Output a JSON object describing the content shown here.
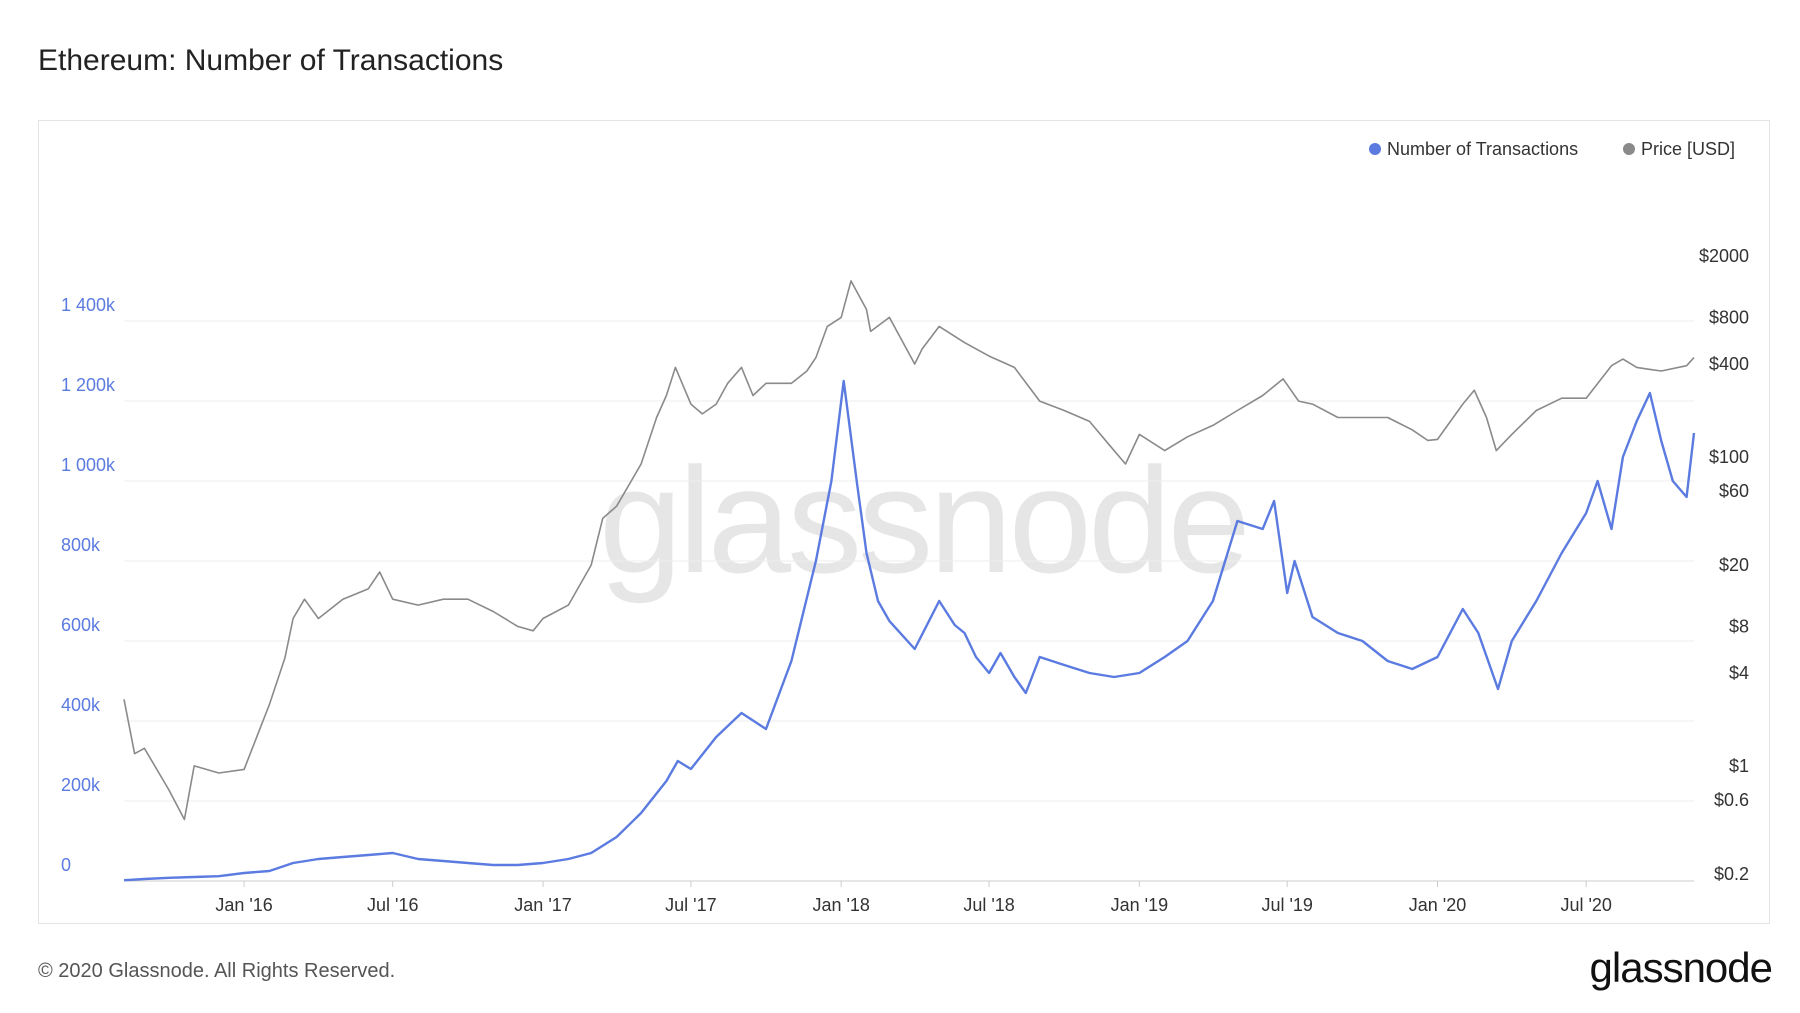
{
  "header": {
    "title": "Ethereum: Number of Transactions"
  },
  "footer": {
    "copyright": "© 2020 Glassnode. All Rights Reserved.",
    "logo": "glassnode"
  },
  "watermark": "glassnode",
  "colors": {
    "transactions": "#5b7be0",
    "price": "#8a8a8a",
    "grid": "#eeeeee"
  },
  "chart_data": {
    "type": "line",
    "title": "Ethereum: Number of Transactions",
    "legend": {
      "placement": "top-right",
      "items": [
        "Number of Transactions",
        "Price [USD]"
      ]
    },
    "grid": true,
    "x_ticks": [
      "Jan '16",
      "Jul '16",
      "Jan '17",
      "Jul '17",
      "Jan '18",
      "Jul '18",
      "Jan '19",
      "Jul '19",
      "Jan '20",
      "Jul '20"
    ],
    "x_range": [
      "2015-08-07",
      "2020-11-10"
    ],
    "y_left": {
      "range": [
        0,
        1600000
      ],
      "ticks": [
        0,
        200000,
        400000,
        600000,
        800000,
        1000000,
        1200000,
        1400000
      ],
      "tick_labels": [
        "0",
        "200k",
        "400k",
        "600k",
        "800k",
        "1 000k",
        "1 200k",
        "1 400k"
      ]
    },
    "y_right": {
      "scale": "log",
      "range": [
        0.18,
        2500
      ],
      "ticks": [
        0.2,
        0.6,
        1,
        4,
        8,
        20,
        60,
        100,
        400,
        800,
        2000
      ],
      "tick_labels": [
        "$0.2",
        "$0.6",
        "$1",
        "$4",
        "$8",
        "$20",
        "$60",
        "$100",
        "$400",
        "$800",
        "$2000"
      ]
    },
    "series": [
      {
        "name": "Number of Transactions",
        "axis": "left",
        "x": [
          "2015-08-07",
          "2015-09-01",
          "2015-10-01",
          "2015-11-01",
          "2015-12-01",
          "2016-01-01",
          "2016-02-01",
          "2016-03-01",
          "2016-04-01",
          "2016-05-01",
          "2016-06-01",
          "2016-07-01",
          "2016-08-01",
          "2016-09-01",
          "2016-10-01",
          "2016-11-01",
          "2016-12-01",
          "2017-01-01",
          "2017-02-01",
          "2017-03-01",
          "2017-04-01",
          "2017-05-01",
          "2017-06-01",
          "2017-06-15",
          "2017-07-01",
          "2017-08-01",
          "2017-09-01",
          "2017-10-01",
          "2017-11-01",
          "2017-12-01",
          "2017-12-20",
          "2018-01-04",
          "2018-01-20",
          "2018-02-01",
          "2018-02-15",
          "2018-03-01",
          "2018-04-01",
          "2018-05-01",
          "2018-05-20",
          "2018-06-01",
          "2018-06-15",
          "2018-07-01",
          "2018-07-15",
          "2018-08-01",
          "2018-08-15",
          "2018-09-01",
          "2018-10-01",
          "2018-11-01",
          "2018-12-01",
          "2019-01-01",
          "2019-02-01",
          "2019-03-01",
          "2019-04-01",
          "2019-05-01",
          "2019-06-01",
          "2019-06-15",
          "2019-07-01",
          "2019-07-10",
          "2019-08-01",
          "2019-09-01",
          "2019-10-01",
          "2019-11-01",
          "2019-12-01",
          "2020-01-01",
          "2020-02-01",
          "2020-02-20",
          "2020-03-15",
          "2020-04-01",
          "2020-05-01",
          "2020-06-01",
          "2020-07-01",
          "2020-07-15",
          "2020-08-01",
          "2020-08-15",
          "2020-09-01",
          "2020-09-17",
          "2020-10-01",
          "2020-10-15",
          "2020-11-01",
          "2020-11-10"
        ],
        "values": [
          2000,
          5000,
          8000,
          10000,
          12000,
          20000,
          25000,
          45000,
          55000,
          60000,
          65000,
          70000,
          55000,
          50000,
          45000,
          40000,
          40000,
          45000,
          55000,
          70000,
          110000,
          170000,
          250000,
          300000,
          280000,
          360000,
          420000,
          380000,
          550000,
          800000,
          1000000,
          1250000,
          1000000,
          820000,
          700000,
          650000,
          580000,
          700000,
          640000,
          620000,
          560000,
          520000,
          570000,
          510000,
          470000,
          560000,
          540000,
          520000,
          510000,
          520000,
          560000,
          600000,
          700000,
          900000,
          880000,
          950000,
          720000,
          800000,
          660000,
          620000,
          600000,
          550000,
          530000,
          560000,
          680000,
          620000,
          480000,
          600000,
          700000,
          820000,
          920000,
          1000000,
          880000,
          1060000,
          1150000,
          1220000,
          1100000,
          1000000,
          960000,
          1120000
        ]
      },
      {
        "name": "Price [USD]",
        "axis": "right",
        "x": [
          "2015-08-07",
          "2015-08-20",
          "2015-09-01",
          "2015-10-01",
          "2015-10-20",
          "2015-11-01",
          "2015-12-01",
          "2016-01-01",
          "2016-02-01",
          "2016-02-20",
          "2016-03-01",
          "2016-03-15",
          "2016-04-01",
          "2016-05-01",
          "2016-06-01",
          "2016-06-15",
          "2016-07-01",
          "2016-08-01",
          "2016-09-01",
          "2016-10-01",
          "2016-11-01",
          "2016-12-01",
          "2016-12-20",
          "2017-01-01",
          "2017-02-01",
          "2017-03-01",
          "2017-03-15",
          "2017-04-01",
          "2017-05-01",
          "2017-05-20",
          "2017-06-01",
          "2017-06-12",
          "2017-07-01",
          "2017-07-15",
          "2017-08-01",
          "2017-08-15",
          "2017-09-01",
          "2017-09-15",
          "2017-10-01",
          "2017-11-01",
          "2017-11-20",
          "2017-12-01",
          "2017-12-15",
          "2018-01-01",
          "2018-01-13",
          "2018-02-01",
          "2018-02-06",
          "2018-03-01",
          "2018-04-01",
          "2018-04-10",
          "2018-05-01",
          "2018-06-01",
          "2018-07-01",
          "2018-08-01",
          "2018-09-01",
          "2018-10-01",
          "2018-11-01",
          "2018-11-25",
          "2018-12-15",
          "2019-01-01",
          "2019-02-01",
          "2019-03-01",
          "2019-04-01",
          "2019-05-01",
          "2019-06-01",
          "2019-06-26",
          "2019-07-15",
          "2019-08-01",
          "2019-09-01",
          "2019-10-01",
          "2019-11-01",
          "2019-12-01",
          "2019-12-20",
          "2020-01-01",
          "2020-02-01",
          "2020-02-15",
          "2020-03-01",
          "2020-03-13",
          "2020-04-01",
          "2020-05-01",
          "2020-06-01",
          "2020-07-01",
          "2020-08-01",
          "2020-08-15",
          "2020-09-01",
          "2020-09-15",
          "2020-10-01",
          "2020-11-01",
          "2020-11-10"
        ],
        "values": [
          2.7,
          1.2,
          1.3,
          0.7,
          0.45,
          1.0,
          0.9,
          0.95,
          2.5,
          5.0,
          9.0,
          12.0,
          9.0,
          12.0,
          14.0,
          18.0,
          12.0,
          11.0,
          12.0,
          12.0,
          10.0,
          8.0,
          7.5,
          9.0,
          11.0,
          20.0,
          40.0,
          48.0,
          90.0,
          180.0,
          250.0,
          380.0,
          220.0,
          190.0,
          220.0,
          300.0,
          380.0,
          250.0,
          300.0,
          300.0,
          360.0,
          440.0,
          700.0,
          800.0,
          1380.0,
          900.0,
          650.0,
          800.0,
          400.0,
          500.0,
          700.0,
          550.0,
          450.0,
          380.0,
          230.0,
          200.0,
          170.0,
          120.0,
          90.0,
          140.0,
          110.0,
          135.0,
          160.0,
          200.0,
          250.0,
          320.0,
          230.0,
          220.0,
          180.0,
          180.0,
          180.0,
          150.0,
          128.0,
          130.0,
          220.0,
          270.0,
          180.0,
          110.0,
          140.0,
          200.0,
          240.0,
          240.0,
          390.0,
          430.0,
          380.0,
          370.0,
          360.0,
          390.0,
          440.0
        ]
      }
    ]
  }
}
